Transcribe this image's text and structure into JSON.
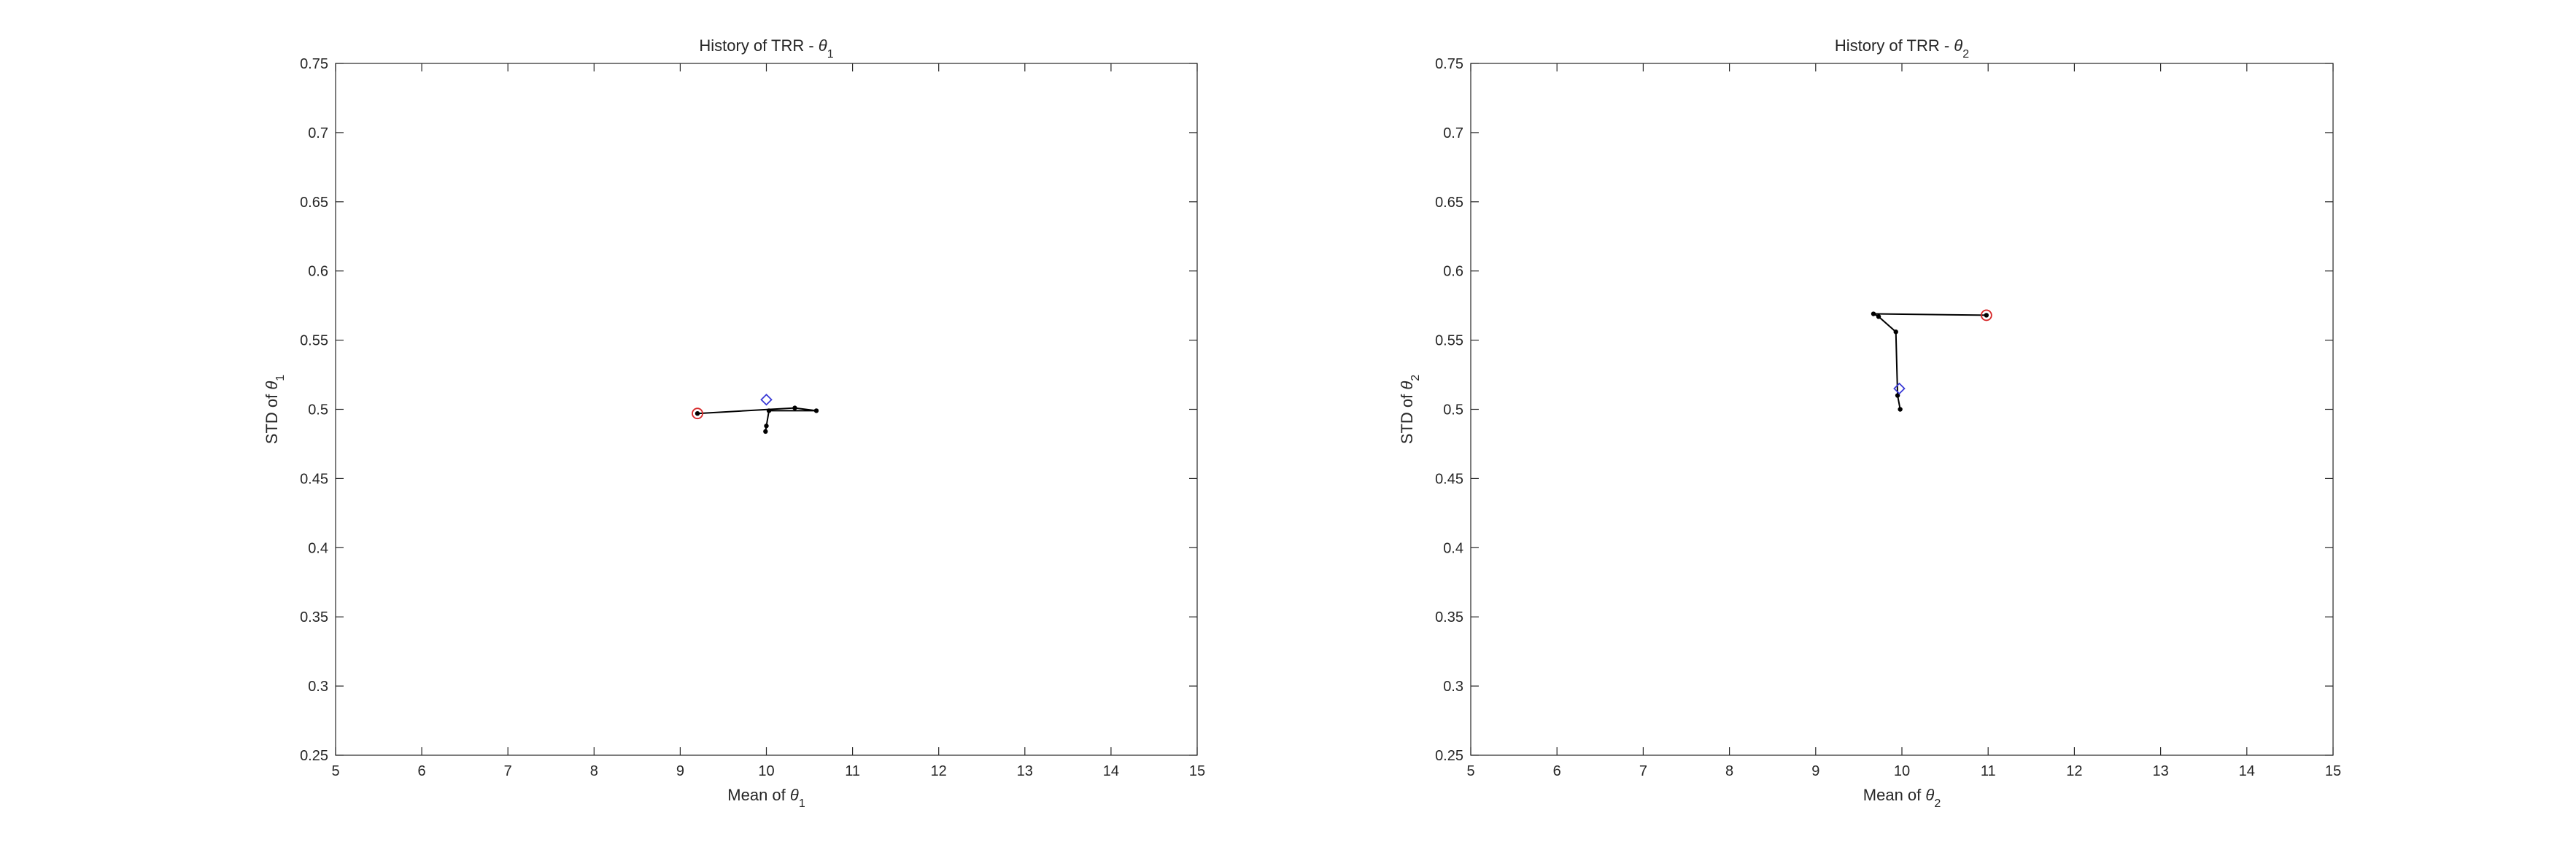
{
  "chart_data": [
    {
      "type": "line",
      "title": "History of TRR - ",
      "title_symbol": "θ",
      "title_subscript": "1",
      "xlabel": "Mean of ",
      "xlabel_symbol": "θ",
      "xlabel_subscript": "1",
      "ylabel": "STD of ",
      "ylabel_symbol": "θ",
      "ylabel_subscript": "1",
      "xlim": [
        5,
        15
      ],
      "ylim": [
        0.25,
        0.75
      ],
      "xticks": [
        "5",
        "6",
        "7",
        "8",
        "9",
        "10",
        "11",
        "12",
        "13",
        "14",
        "15"
      ],
      "yticks": [
        "0.25",
        "0.3",
        "0.35",
        "0.4",
        "0.45",
        "0.5",
        "0.55",
        "0.6",
        "0.65",
        "0.7",
        "0.75"
      ],
      "grid": false,
      "series": [
        {
          "marker": "dot",
          "color": "#000000",
          "points": [
            [
              9.2,
              0.497
            ],
            [
              10.33,
              0.501
            ],
            [
              10.58,
              0.499
            ],
            [
              10.03,
              0.499
            ],
            [
              10.0,
              0.488
            ],
            [
              9.99,
              0.484
            ]
          ]
        }
      ],
      "start_marker": {
        "x": 9.2,
        "y": 0.497,
        "shape": "circle",
        "color": "#d62728"
      },
      "target_marker": {
        "x": 10.0,
        "y": 0.507,
        "shape": "diamond",
        "color": "#3b3bd6"
      }
    },
    {
      "type": "line",
      "title": "History of TRR - ",
      "title_symbol": "θ",
      "title_subscript": "2",
      "xlabel": "Mean of ",
      "xlabel_symbol": "θ",
      "xlabel_subscript": "2",
      "ylabel": "STD of ",
      "ylabel_symbol": "θ",
      "ylabel_subscript": "2",
      "xlim": [
        5,
        15
      ],
      "ylim": [
        0.25,
        0.75
      ],
      "xticks": [
        "5",
        "6",
        "7",
        "8",
        "9",
        "10",
        "11",
        "12",
        "13",
        "14",
        "15"
      ],
      "yticks": [
        "0.25",
        "0.3",
        "0.35",
        "0.4",
        "0.45",
        "0.5",
        "0.55",
        "0.6",
        "0.65",
        "0.7",
        "0.75"
      ],
      "grid": false,
      "series": [
        {
          "marker": "dot",
          "color": "#000000",
          "points": [
            [
              10.98,
              0.568
            ],
            [
              9.67,
              0.569
            ],
            [
              9.73,
              0.567
            ],
            [
              9.93,
              0.556
            ],
            [
              9.95,
              0.51
            ],
            [
              9.98,
              0.5
            ]
          ]
        }
      ],
      "start_marker": {
        "x": 10.98,
        "y": 0.568,
        "shape": "circle",
        "color": "#d62728"
      },
      "target_marker": {
        "x": 9.97,
        "y": 0.515,
        "shape": "diamond",
        "color": "#3b3bd6"
      }
    }
  ]
}
